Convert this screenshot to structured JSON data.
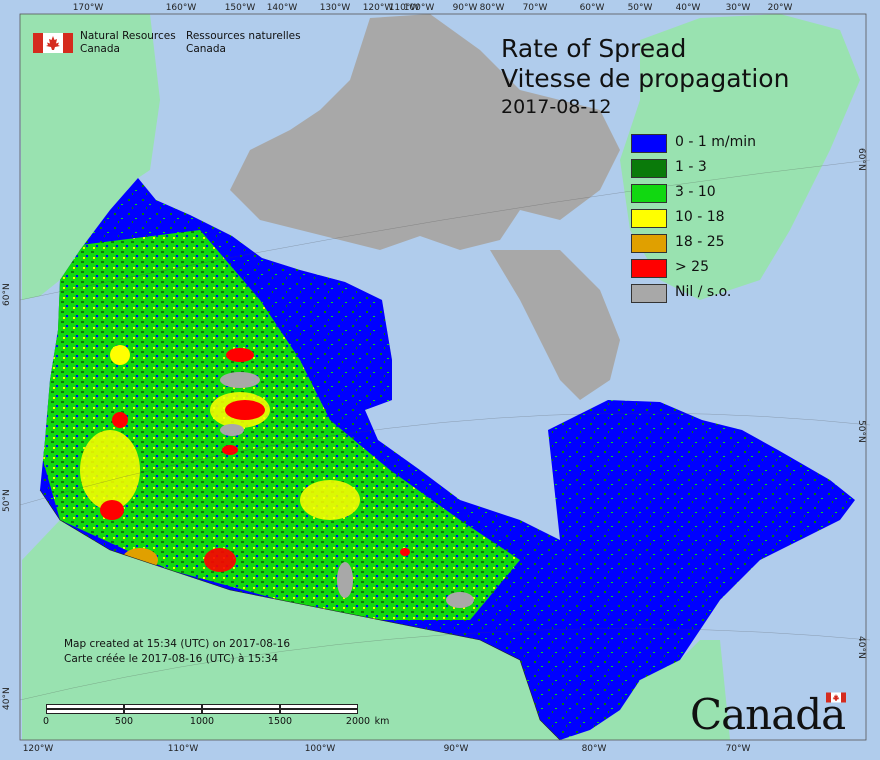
{
  "agency": {
    "name_en_line1": "Natural Resources",
    "name_en_line2": "Canada",
    "name_fr_line1": "Ressources naturelles",
    "name_fr_line2": "Canada"
  },
  "title": {
    "line1": "Rate of Spread",
    "line2": "Vitesse de propagation",
    "date": "2017-08-12"
  },
  "legend": [
    {
      "label": "0 - 1 m/min",
      "color": "#0000ff"
    },
    {
      "label": "1 - 3",
      "color": "#0a7a0a"
    },
    {
      "label": "3 - 10",
      "color": "#11d811"
    },
    {
      "label": "10 - 18",
      "color": "#ffff00"
    },
    {
      "label": "18 - 25",
      "color": "#e0a000"
    },
    {
      "label": "> 25",
      "color": "#ff0000"
    },
    {
      "label": "Nil / s.o.",
      "color": "#a8a8a8"
    }
  ],
  "credits": {
    "line_en": "Map created at 15:34 (UTC) on 2017-08-16",
    "line_fr": "Carte créée le 2017-08-16 (UTC) à 15:34"
  },
  "scale_bar": {
    "labels": [
      "0",
      "500",
      "1000",
      "1500",
      "2000"
    ],
    "unit": "km"
  },
  "graticule": {
    "top_longitudes": [
      "170°W",
      "160°W",
      "150°W",
      "140°W",
      "130°W",
      "120°W",
      "110°W",
      "100°W",
      "90°W",
      "80°W",
      "70°W",
      "60°W",
      "50°W",
      "40°W",
      "30°W",
      "20°W"
    ],
    "bottom_longitudes": [
      "120°W",
      "110°W",
      "100°W",
      "90°W",
      "80°W",
      "70°W"
    ],
    "left_latitudes": [
      "60°N",
      "50°N",
      "40°N"
    ],
    "right_latitudes": [
      "60°N",
      "50°N",
      "40°N"
    ]
  },
  "wordmark": "Canada",
  "colors": {
    "ocean": "#b0ccec",
    "land_outside": "#99e2b0",
    "nil": "#a8a8a8"
  }
}
